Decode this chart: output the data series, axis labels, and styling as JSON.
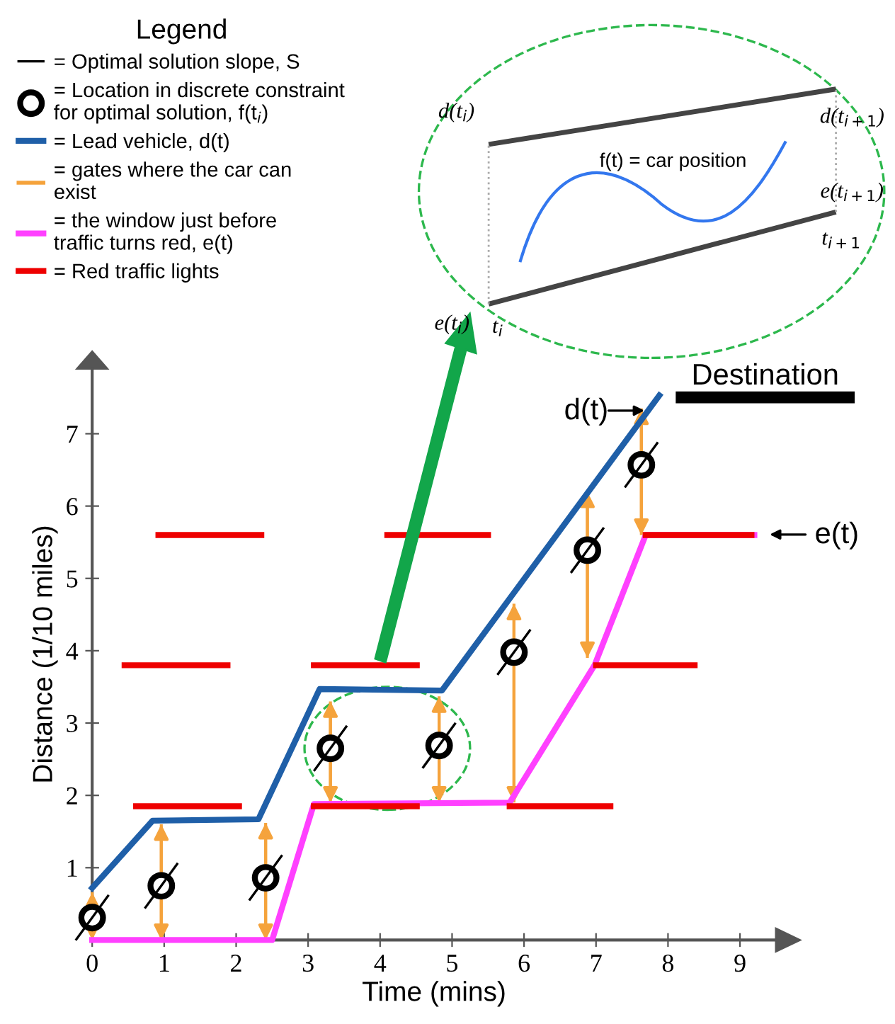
{
  "chart_data": {
    "type": "line",
    "xlabel": "Time (mins)",
    "ylabel": "Distance (1/10 miles)",
    "legend_title": "Legend",
    "legend": "top left",
    "xlim": [
      0,
      9.5
    ],
    "ylim": [
      0,
      7.9
    ],
    "xticks": [
      0,
      1,
      2,
      3,
      4,
      5,
      6,
      7,
      8,
      9
    ],
    "yticks": [
      1,
      2,
      3,
      4,
      5,
      6,
      7
    ],
    "series": [
      {
        "name": "= Location in discrete constraint\nfor optimal solution, f(t$_{i}$)",
        "type": "scatter",
        "marker": "circle",
        "color": "#000000",
        "x": [
          0,
          0.96,
          2.41,
          3.31,
          4.82,
          5.86,
          6.88,
          7.63
        ],
        "values": [
          0.31,
          0.75,
          0.86,
          2.65,
          2.69,
          3.98,
          5.39,
          6.57
        ],
        "errors": [
          [
            0,
            0.66
          ],
          [
            0,
            1.6
          ],
          [
            0,
            1.62
          ],
          [
            1.9,
            3.3
          ],
          [
            1.9,
            3.37
          ],
          [
            1.9,
            4.65
          ],
          [
            3.9,
            6.2
          ],
          [
            5.6,
            7.35
          ]
        ]
      },
      {
        "name": "= Lead vehicle, d(t)",
        "color": "#1f5fa8",
        "x": [
          0,
          0.84,
          2.31,
          3.16,
          4.86,
          7.88
        ],
        "values": [
          0.72,
          1.65,
          1.67,
          3.47,
          3.45,
          7.53
        ]
      },
      {
        "name": "= the window just before\ntraffic turns red, e(t)",
        "color": "#ff40ff",
        "x": [
          0,
          2.5,
          3.08,
          5.8,
          6.98,
          7.69,
          9.2
        ],
        "values": [
          0,
          0,
          1.88,
          1.9,
          3.8,
          5.6,
          5.6
        ]
      },
      {
        "name": "= Red traffic lights",
        "color": "#ee0000",
        "x": [
          0.61,
          2.04,
          null,
          3.08,
          4.51,
          null,
          5.8,
          7.2
        ],
        "values": [
          1.85,
          1.85,
          null,
          1.85,
          1.85,
          null,
          1.85,
          1.85
        ]
      },
      {
        "color": "#ee0000",
        "x": [
          0.45,
          1.88,
          null,
          3.08,
          4.51,
          null,
          7.0,
          8.37
        ],
        "values": [
          3.8,
          3.8,
          null,
          3.8,
          3.8,
          null,
          3.8,
          3.8
        ]
      },
      {
        "color": "#ee0000",
        "x": [
          0.92,
          2.35,
          null,
          4.1,
          5.5,
          null,
          7.69,
          9.16
        ],
        "values": [
          5.6,
          5.6,
          null,
          5.6,
          5.6,
          null,
          5.6,
          5.6
        ]
      }
    ],
    "annotations": [
      "= Optimal solution slope, S",
      "= gates where the car can\nexist",
      "d(t)",
      "e(t)",
      "Destination",
      "f(t) = car position",
      "d(t$_{i}$)",
      "e(t$_{i}$)",
      "t$_{i}$",
      "d(t$_{i+1}$)",
      "e(t$_{i+1}$)",
      "t$_{i+1}$"
    ]
  }
}
